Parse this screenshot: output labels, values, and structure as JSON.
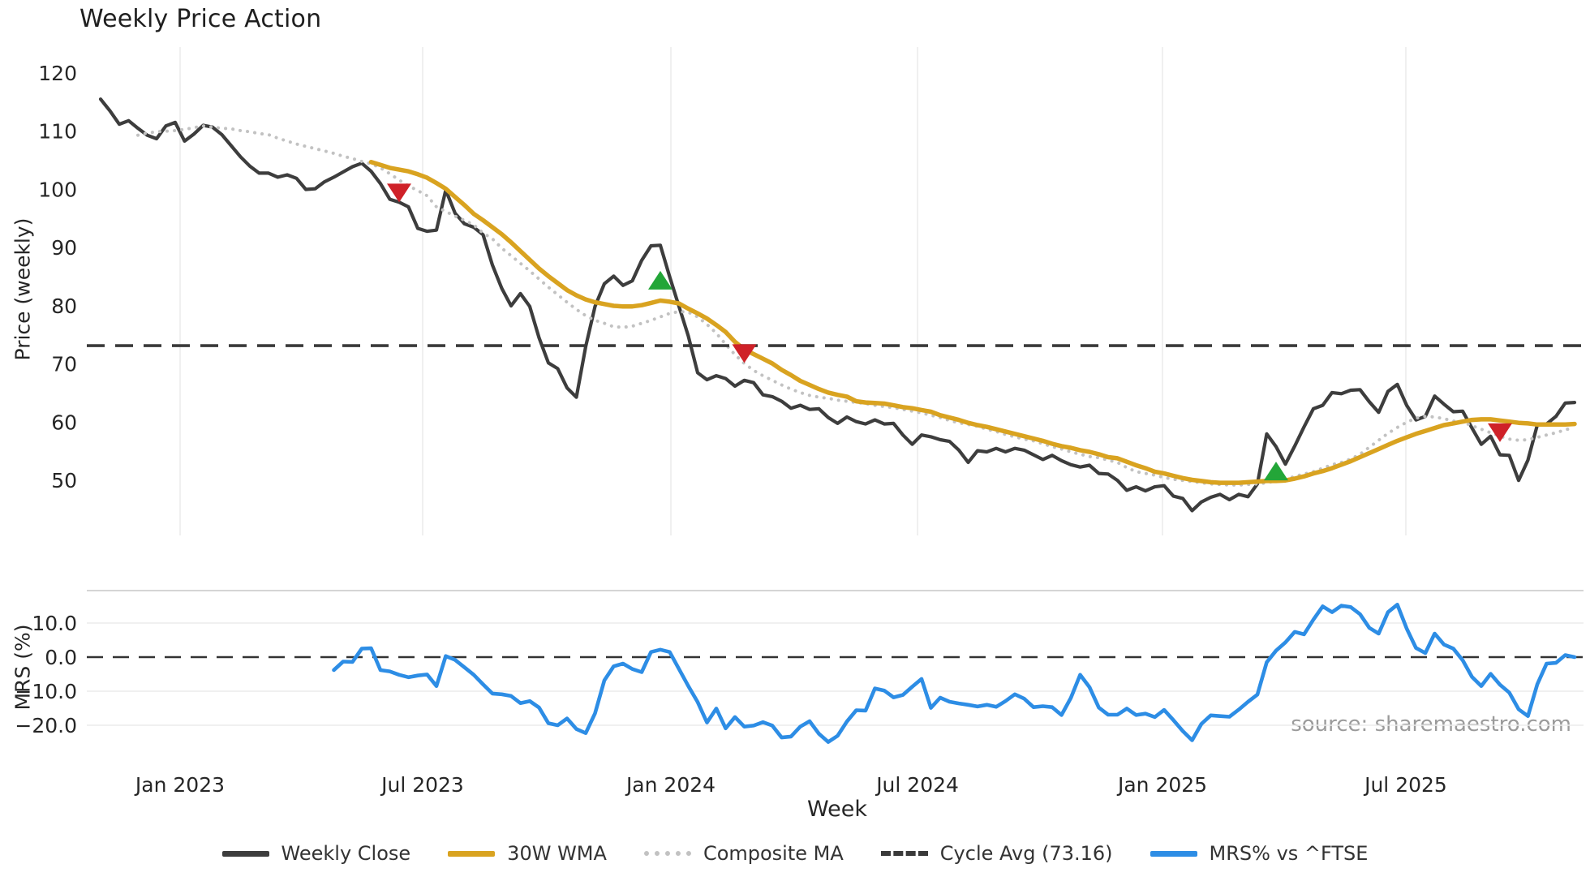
{
  "ui": {
    "title": "Weekly Price Action",
    "source_note": "source: sharemaestro.com",
    "legend": [
      {
        "label": "Weekly Close",
        "color": "#3d3d3d",
        "style": "solid"
      },
      {
        "label": "30W WMA",
        "color": "#d9a320",
        "style": "solid"
      },
      {
        "label": "Composite MA",
        "color": "#c2c2c2",
        "style": "dotted"
      },
      {
        "label": "Cycle Avg (73.16)",
        "color": "#3a3a3a",
        "style": "dashed"
      },
      {
        "label": "MRS% vs ^FTSE",
        "color": "#2d8de5",
        "style": "solid"
      }
    ],
    "colors": {
      "close": "#3d3d3d",
      "wma": "#d9a320",
      "composite": "#c2c2c2",
      "cycle": "#3a3a3a",
      "mrs": "#2d8de5",
      "buy": "#23a638",
      "sell": "#cf2128",
      "grid": "#ececec",
      "panel_border": "#cfcfcf"
    }
  },
  "chart_data": [
    {
      "type": "line",
      "title": "Weekly Price Action",
      "xlabel": "Week",
      "ylabel": "Price (weekly)",
      "ylim": [
        40.5,
        124.2
      ],
      "grid": "vertical-only",
      "x_ticks": [
        {
          "label": "Jan 2023",
          "i": 8.52
        },
        {
          "label": "Jul 2023",
          "i": 34.52
        },
        {
          "label": "Jan 2024",
          "i": 61.13
        },
        {
          "label": "Jul 2024",
          "i": 87.57
        },
        {
          "label": "Jan 2025",
          "i": 113.83
        },
        {
          "label": "Jul 2025",
          "i": 139.91
        }
      ],
      "y_ticks": [
        {
          "label": "120",
          "v": 120
        },
        {
          "label": "110",
          "v": 110
        },
        {
          "label": "100",
          "v": 100
        },
        {
          "label": "90",
          "v": 90
        },
        {
          "label": "80",
          "v": 80
        },
        {
          "label": "70",
          "v": 70
        },
        {
          "label": "60",
          "v": 60
        },
        {
          "label": "50",
          "v": 50
        }
      ],
      "series": [
        {
          "name": "Weekly Close",
          "style": "solid",
          "color": "#3d3d3d",
          "start_index": 0,
          "values": [
            115.5,
            113.5,
            111.2,
            111.8,
            110.5,
            109.3,
            108.7,
            110.9,
            111.5,
            108.3,
            109.5,
            111.0,
            110.7,
            109.4,
            107.5,
            105.6,
            104.0,
            102.8,
            102.8,
            102.1,
            102.5,
            101.9,
            100.0,
            100.1,
            101.3,
            102.1,
            103.0,
            103.9,
            104.5,
            103.1,
            101.0,
            98.3,
            97.8,
            97.0,
            93.3,
            92.8,
            93.0,
            99.9,
            95.9,
            94.1,
            93.5,
            92.2,
            87.0,
            83.0,
            80.0,
            82.1,
            79.9,
            74.5,
            70.2,
            69.2,
            65.9,
            64.3,
            73.0,
            79.9,
            83.8,
            85.1,
            83.5,
            84.3,
            87.8,
            90.3,
            90.4,
            85.0,
            79.9,
            74.8,
            68.5,
            67.3,
            68.0,
            67.5,
            66.2,
            67.2,
            66.8,
            64.7,
            64.4,
            63.6,
            62.4,
            62.9,
            62.2,
            62.3,
            60.8,
            59.8,
            60.9,
            60.1,
            59.7,
            60.4,
            59.7,
            59.8,
            57.8,
            56.2,
            57.8,
            57.5,
            57.0,
            56.7,
            55.2,
            53.1,
            55.1,
            54.9,
            55.5,
            54.9,
            55.5,
            55.2,
            54.4,
            53.6,
            54.3,
            53.4,
            52.7,
            52.3,
            52.6,
            51.2,
            51.1,
            50.0,
            48.3,
            48.9,
            48.2,
            48.9,
            49.1,
            47.3,
            46.9,
            44.8,
            46.3,
            47.1,
            47.6,
            46.7,
            47.6,
            47.2,
            49.4,
            58.0,
            55.8,
            52.8,
            55.9,
            59.2,
            62.3,
            62.9,
            65.1,
            64.9,
            65.5,
            65.6,
            63.5,
            61.7,
            65.3,
            66.5,
            62.9,
            60.4,
            61.0,
            64.5,
            63.1,
            61.8,
            61.9,
            59.0,
            56.2,
            57.6,
            54.4,
            54.3,
            50.0,
            53.5,
            59.5,
            59.7,
            61.0,
            63.3,
            63.4
          ]
        },
        {
          "name": "30W WMA",
          "style": "solid",
          "color": "#d9a320",
          "start_index": 29,
          "values": [
            104.7,
            104.2,
            103.7,
            103.4,
            103.1,
            102.6,
            102.0,
            101.1,
            100.1,
            98.7,
            97.3,
            95.8,
            94.7,
            93.5,
            92.3,
            90.9,
            89.4,
            87.9,
            86.4,
            85.1,
            83.9,
            82.7,
            81.8,
            81.1,
            80.6,
            80.3,
            80.0,
            79.9,
            79.9,
            80.1,
            80.5,
            80.9,
            80.7,
            80.4,
            79.5,
            78.7,
            77.8,
            76.7,
            75.5,
            73.8,
            72.5,
            71.7,
            70.9,
            70.1,
            69.0,
            68.1,
            67.1,
            66.4,
            65.7,
            65.1,
            64.7,
            64.4,
            63.6,
            63.4,
            63.3,
            63.2,
            62.9,
            62.6,
            62.4,
            62.1,
            61.8,
            61.2,
            60.8,
            60.4,
            59.9,
            59.5,
            59.2,
            58.8,
            58.4,
            58.0,
            57.6,
            57.2,
            56.8,
            56.3,
            55.9,
            55.6,
            55.2,
            54.9,
            54.5,
            54.0,
            53.8,
            53.2,
            52.6,
            52.1,
            51.5,
            51.2,
            50.8,
            50.4,
            50.1,
            49.9,
            49.7,
            49.6,
            49.6,
            49.6,
            49.7,
            49.8,
            49.9,
            49.9,
            50.0,
            50.3,
            50.7,
            51.2,
            51.6,
            52.1,
            52.7,
            53.3,
            54.0,
            54.7,
            55.4,
            56.1,
            56.8,
            57.4,
            58.0,
            58.5,
            59.0,
            59.5,
            59.8,
            60.1,
            60.4,
            60.5,
            60.5,
            60.3,
            60.1,
            59.9,
            59.8,
            59.6,
            59.6,
            59.6,
            59.6,
            59.7
          ]
        },
        {
          "name": "Composite MA",
          "style": "dotted",
          "color": "#c2c2c2",
          "start_index": 4,
          "values": [
            109.3,
            109.7,
            109.9,
            110.0,
            110.1,
            110.3,
            110.6,
            110.9,
            110.7,
            110.5,
            110.4,
            110.1,
            109.9,
            109.6,
            109.4,
            108.8,
            108.3,
            107.8,
            107.4,
            107.0,
            106.6,
            106.2,
            105.7,
            105.3,
            104.8,
            104.4,
            103.7,
            102.7,
            101.6,
            100.6,
            99.8,
            98.9,
            97.0,
            96.2,
            95.4,
            94.7,
            93.9,
            92.5,
            91.5,
            89.9,
            88.6,
            87.3,
            86.0,
            84.6,
            83.2,
            81.9,
            80.6,
            79.4,
            78.3,
            77.5,
            77.0,
            76.4,
            76.3,
            76.5,
            77.0,
            77.5,
            78.1,
            78.7,
            79.0,
            78.9,
            78.1,
            76.8,
            75.3,
            73.4,
            71.6,
            70.1,
            68.9,
            68.0,
            67.2,
            66.4,
            65.7,
            65.1,
            64.6,
            64.3,
            64.1,
            63.8,
            63.6,
            63.4,
            63.2,
            62.9,
            62.7,
            62.5,
            62.2,
            61.9,
            61.6,
            61.2,
            60.8,
            60.3,
            59.9,
            59.6,
            59.3,
            58.8,
            58.4,
            57.9,
            57.5,
            57.1,
            56.8,
            56.3,
            55.8,
            55.4,
            54.9,
            54.5,
            54.1,
            53.9,
            53.5,
            53.1,
            52.2,
            51.5,
            51.2,
            50.9,
            50.5,
            50.2,
            50.0,
            49.8,
            49.6,
            49.4,
            49.3,
            49.2,
            49.2,
            49.3,
            49.4,
            49.6,
            49.9,
            50.2,
            50.7,
            51.1,
            51.5,
            52.1,
            52.7,
            53.1,
            53.7,
            54.5,
            55.7,
            56.9,
            58.1,
            59.1,
            60.0,
            60.7,
            61.0,
            60.9,
            60.6,
            60.2,
            60.0,
            59.4,
            58.8,
            58.2,
            57.6,
            57.1,
            56.9,
            57.0,
            57.4,
            57.8,
            58.2,
            58.7,
            59.1
          ]
        },
        {
          "name": "Cycle Avg (73.16)",
          "style": "dashed",
          "color": "#3a3a3a",
          "value": 73.16,
          "full_width": true
        }
      ],
      "markers": [
        {
          "signal": "sell",
          "shape": "triangle-down",
          "color": "#cf2128",
          "i": 32,
          "v": 99.6
        },
        {
          "signal": "buy",
          "shape": "triangle-up",
          "color": "#23a638",
          "i": 60,
          "v": 84.2
        },
        {
          "signal": "sell",
          "shape": "triangle-down",
          "color": "#cf2128",
          "i": 69,
          "v": 72.0
        },
        {
          "signal": "buy",
          "shape": "triangle-up",
          "color": "#23a638",
          "i": 126,
          "v": 51.4
        },
        {
          "signal": "sell",
          "shape": "triangle-down",
          "color": "#cf2128",
          "i": 150,
          "v": 58.4
        }
      ]
    },
    {
      "type": "line",
      "ylabel": "MRS (%)",
      "ylim": [
        -26.0,
        19.5
      ],
      "baseline": {
        "value": 0,
        "style": "dashed",
        "color": "#333333"
      },
      "y_ticks": [
        {
          "label": "10.0",
          "v": 10
        },
        {
          "label": "0.0",
          "v": 0
        },
        {
          "label": "−10.0",
          "v": -10
        },
        {
          "label": "−20.0",
          "v": -20
        }
      ],
      "series": [
        {
          "name": "MRS% vs ^FTSE",
          "style": "solid",
          "color": "#2d8de5",
          "start_index": 25,
          "values": [
            -3.8,
            -1.3,
            -1.4,
            2.5,
            2.6,
            -3.8,
            -4.2,
            -5.2,
            -5.9,
            -5.4,
            -5.1,
            -8.5,
            0.3,
            -0.8,
            -3.0,
            -5.2,
            -8.0,
            -10.7,
            -10.9,
            -11.4,
            -13.5,
            -12.9,
            -14.8,
            -19.4,
            -20.0,
            -18.0,
            -21.1,
            -22.3,
            -16.5,
            -6.8,
            -2.7,
            -1.9,
            -3.5,
            -4.4,
            1.5,
            2.2,
            1.5,
            -3.5,
            -8.5,
            -13.2,
            -19.2,
            -15.1,
            -20.9,
            -17.6,
            -20.4,
            -20.1,
            -19.1,
            -20.1,
            -23.6,
            -23.3,
            -20.4,
            -18.8,
            -22.5,
            -24.9,
            -23.1,
            -18.9,
            -15.6,
            -15.7,
            -9.2,
            -9.8,
            -11.8,
            -11.1,
            -8.7,
            -6.4,
            -14.9,
            -11.9,
            -13.1,
            -13.6,
            -14.0,
            -14.5,
            -14.0,
            -14.6,
            -12.9,
            -10.9,
            -12.2,
            -14.7,
            -14.4,
            -14.7,
            -17.0,
            -12.0,
            -5.2,
            -8.8,
            -14.8,
            -16.9,
            -16.9,
            -15.1,
            -17.0,
            -16.6,
            -17.6,
            -15.5,
            -18.5,
            -21.7,
            -24.4,
            -19.6,
            -17.1,
            -17.3,
            -17.5,
            -15.4,
            -13.1,
            -11.0,
            -1.5,
            1.9,
            4.3,
            7.4,
            6.7,
            11.0,
            14.9,
            13.2,
            15.1,
            14.7,
            12.6,
            8.6,
            6.9,
            13.2,
            15.4,
            8.4,
            2.7,
            1.2,
            6.9,
            3.7,
            2.5,
            -0.9,
            -5.8,
            -8.5,
            -4.9,
            -8.1,
            -10.4,
            -15.3,
            -17.3,
            -8.0,
            -1.9,
            -1.7,
            0.6,
            0.0
          ]
        }
      ]
    }
  ]
}
